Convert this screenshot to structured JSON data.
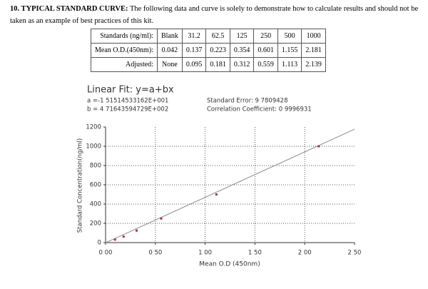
{
  "header": {
    "title": "10. TYPICAL STANDARD CURVE:",
    "text": "The following data and curve is solely to demonstrate how to calculate results and should not be taken as an example of best practices of this kit."
  },
  "table": {
    "rows": [
      [
        "Standards (ng/ml):",
        "Blank",
        "31.2",
        "62.5",
        "125",
        "250",
        "500",
        "1000"
      ],
      [
        "Mean O.D.(450nm):",
        "0.042",
        "0.137",
        "0.223",
        "0.354",
        "0.601",
        "1.155",
        "2.181"
      ],
      [
        "Adjusted:",
        "None",
        "0.095",
        "0.181",
        "0.312",
        "0.559",
        "1.113",
        "2.139"
      ]
    ]
  },
  "chart_data": {
    "type": "scatter",
    "title": "Linear Fit: y=a+bx",
    "annotations": [
      "a =-1 51514533162E+001",
      "b = 4 71643594729E+002",
      "Standard Error: 9 7809428",
      "Correlation Coefficient: 0 9996931"
    ],
    "xlabel": "Mean O.D (450nm)",
    "ylabel": "Standard Concentration(ng/ml)",
    "xlim": [
      0,
      2.5
    ],
    "xticks": [
      {
        "value": 0,
        "label": "0 00"
      },
      {
        "value": 0.5,
        "label": "0 50"
      },
      {
        "value": 1,
        "label": "1 00"
      },
      {
        "value": 1.5,
        "label": "1 50"
      },
      {
        "value": 2,
        "label": "2 00"
      },
      {
        "value": 2.5,
        "label": "2 50"
      }
    ],
    "ylim": [
      0,
      1200
    ],
    "yticks": [
      0,
      200,
      400,
      600,
      800,
      1000,
      1200
    ],
    "grid": true,
    "series": [
      {
        "color": "#b03040",
        "x": [
          0.095,
          0.181,
          0.312,
          0.559,
          1.113,
          2.139
        ],
        "values": [
          31.2,
          62.5,
          125,
          250,
          500,
          1000
        ]
      }
    ],
    "fit": {
      "color": "#8a8a8a",
      "x": [
        0,
        2.5
      ],
      "values": [
        -1.5,
        1177.6
      ]
    }
  }
}
